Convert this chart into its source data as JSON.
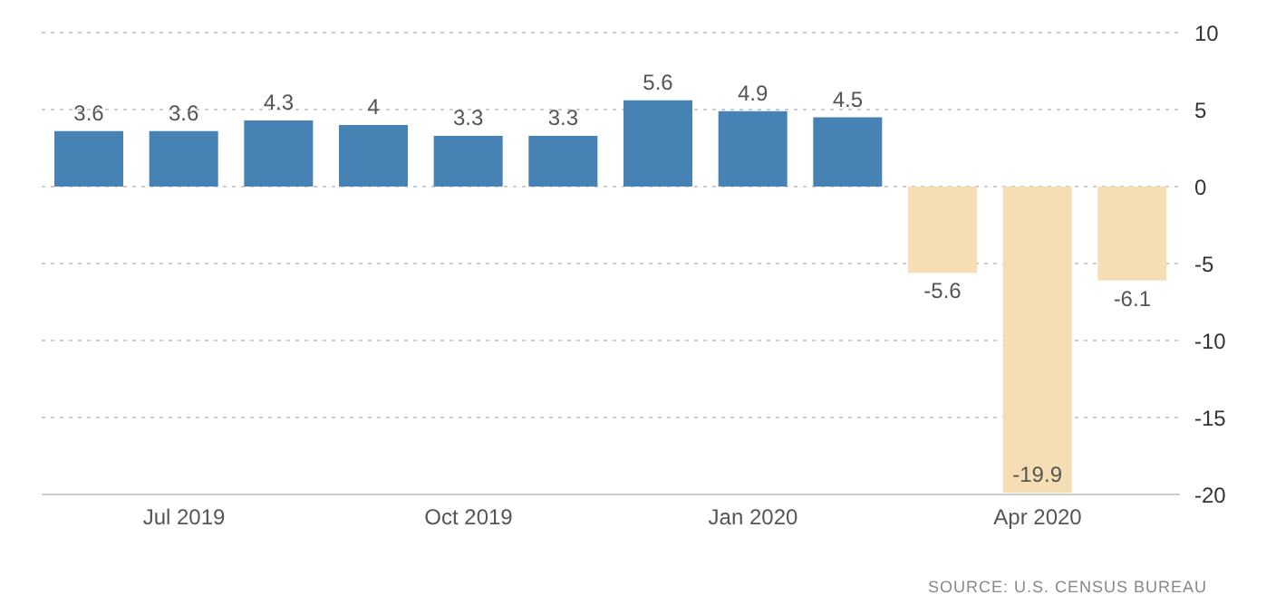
{
  "chart_data": {
    "type": "bar",
    "categories": [
      null,
      "Jul 2019",
      null,
      null,
      "Oct 2019",
      null,
      null,
      "Jan 2020",
      null,
      null,
      "Apr 2020",
      null
    ],
    "values": [
      3.6,
      3.6,
      4.3,
      4,
      3.3,
      3.3,
      5.6,
      4.9,
      4.5,
      -5.6,
      -19.9,
      -6.1
    ],
    "colors": [
      "#4682b4",
      "#4682b4",
      "#4682b4",
      "#4682b4",
      "#4682b4",
      "#4682b4",
      "#4682b4",
      "#4682b4",
      "#4682b4",
      "#f5deb3",
      "#f5deb3",
      "#f5deb3"
    ],
    "ylim": [
      -20,
      10
    ],
    "yticks": [
      -20,
      -15,
      -10,
      -5,
      0,
      5,
      10
    ],
    "grid": "y",
    "data_labels": true,
    "annotations": [
      "SOURCE: U.S. CENSUS BUREAU"
    ]
  }
}
